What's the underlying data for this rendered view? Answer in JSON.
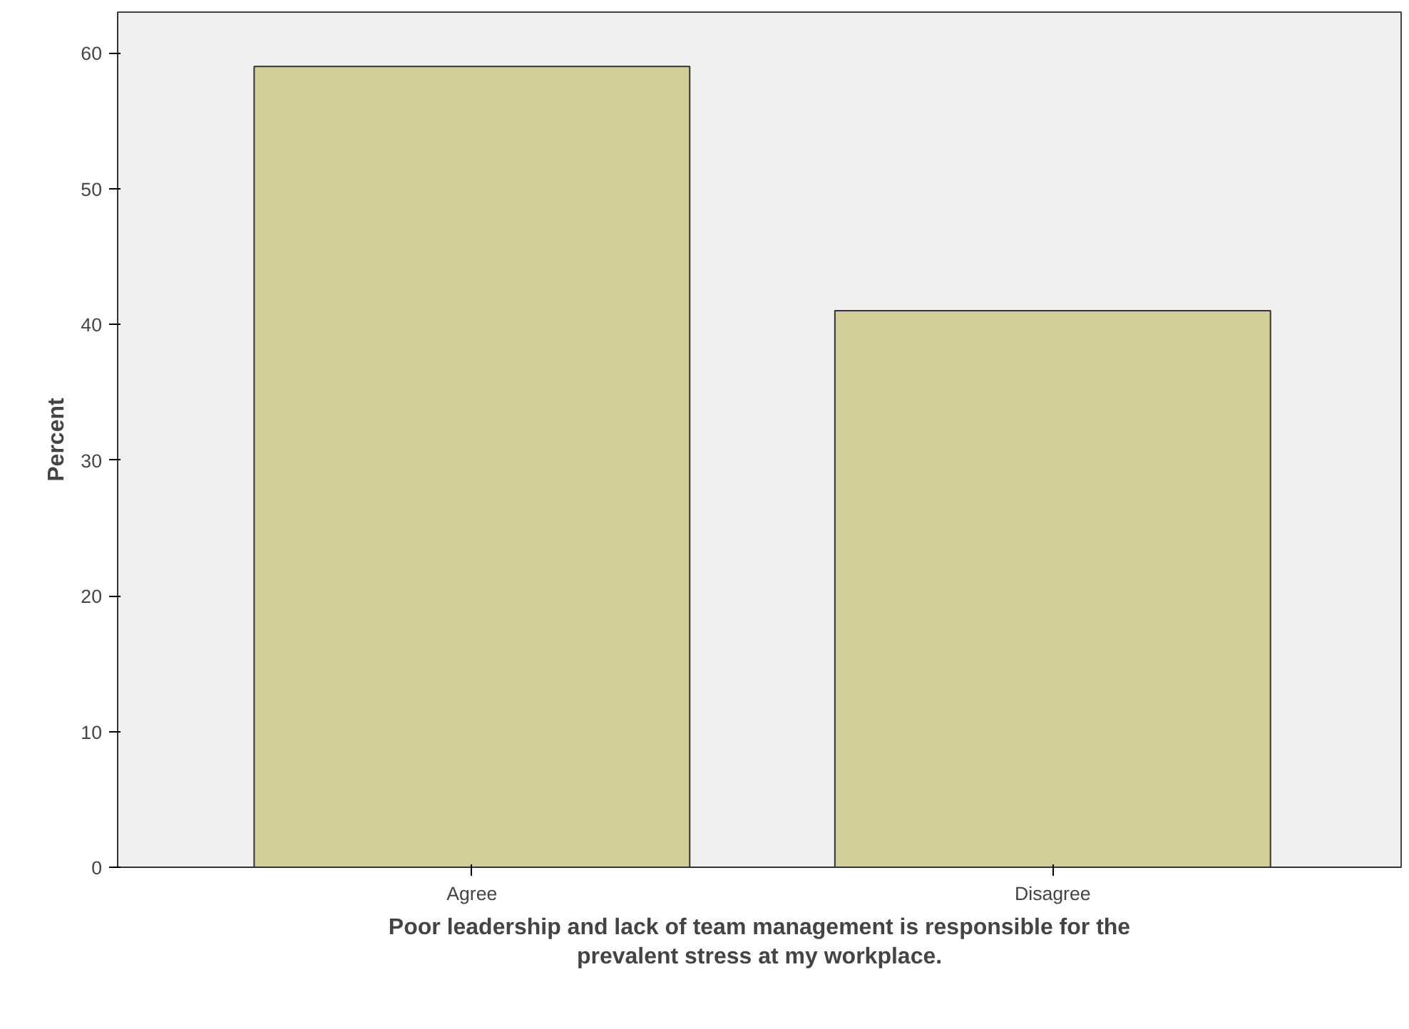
{
  "chart_data": {
    "type": "bar",
    "categories": [
      "Agree",
      "Disagree"
    ],
    "values": [
      59,
      41
    ],
    "color": "#d3ce97",
    "xlabel": "Poor leadership and lack of team management is responsible for the prevalent stress at my workplace.",
    "ylabel": "Percent",
    "ylim": [
      0,
      63
    ],
    "yticks": [
      0,
      10,
      20,
      30,
      40,
      50,
      60
    ],
    "grid": false
  }
}
